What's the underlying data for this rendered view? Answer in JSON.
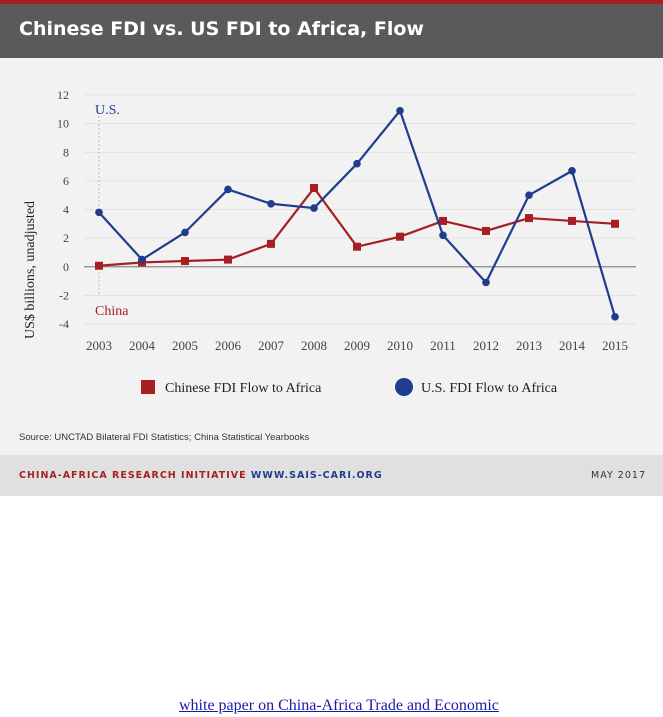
{
  "header": {
    "title": "Chinese FDI vs. US FDI to Africa, Flow"
  },
  "colors": {
    "china": "#a61f23",
    "us": "#1f3d8c",
    "header_bg": "#5a5a5a",
    "card_bg": "#f2f2f2"
  },
  "chart_data": {
    "type": "line",
    "title": "Chinese FDI vs. US FDI to Africa, Flow",
    "xlabel": "",
    "ylabel": "US$ billions, unadjusted",
    "ylim": [
      -4,
      12
    ],
    "yticks": [
      12,
      10,
      8,
      6,
      4,
      2,
      0,
      -2,
      -4
    ],
    "categories": [
      "2003",
      "2004",
      "2005",
      "2006",
      "2007",
      "2008",
      "2009",
      "2010",
      "2011",
      "2012",
      "2013",
      "2014",
      "2015"
    ],
    "series": [
      {
        "name": "Chinese FDI Flow to Africa",
        "marker": "square",
        "label": "China",
        "values": [
          0.07,
          0.3,
          0.4,
          0.5,
          1.6,
          5.5,
          1.4,
          2.1,
          3.2,
          2.5,
          3.4,
          3.2,
          3.0
        ]
      },
      {
        "name": "U.S. FDI Flow to Africa",
        "marker": "circle",
        "label": "U.S.",
        "values": [
          3.8,
          0.5,
          2.4,
          5.4,
          4.4,
          4.1,
          7.2,
          10.9,
          2.2,
          -1.1,
          5.0,
          6.7,
          -3.5
        ]
      }
    ],
    "annotations": [
      "U.S.",
      "China"
    ],
    "legend_position": "bottom-center",
    "grid": true
  },
  "source": "Source: UNCTAD Bilateral FDI Statistics; China Statistical Yearbooks",
  "footer": {
    "org": "CHINA-AFRICA RESEARCH INITIATIVE",
    "url": "WWW.SAIS-CARI.ORG",
    "date": "MAY 2017"
  },
  "bottom_link": "white paper on China-Africa Trade and Economic"
}
